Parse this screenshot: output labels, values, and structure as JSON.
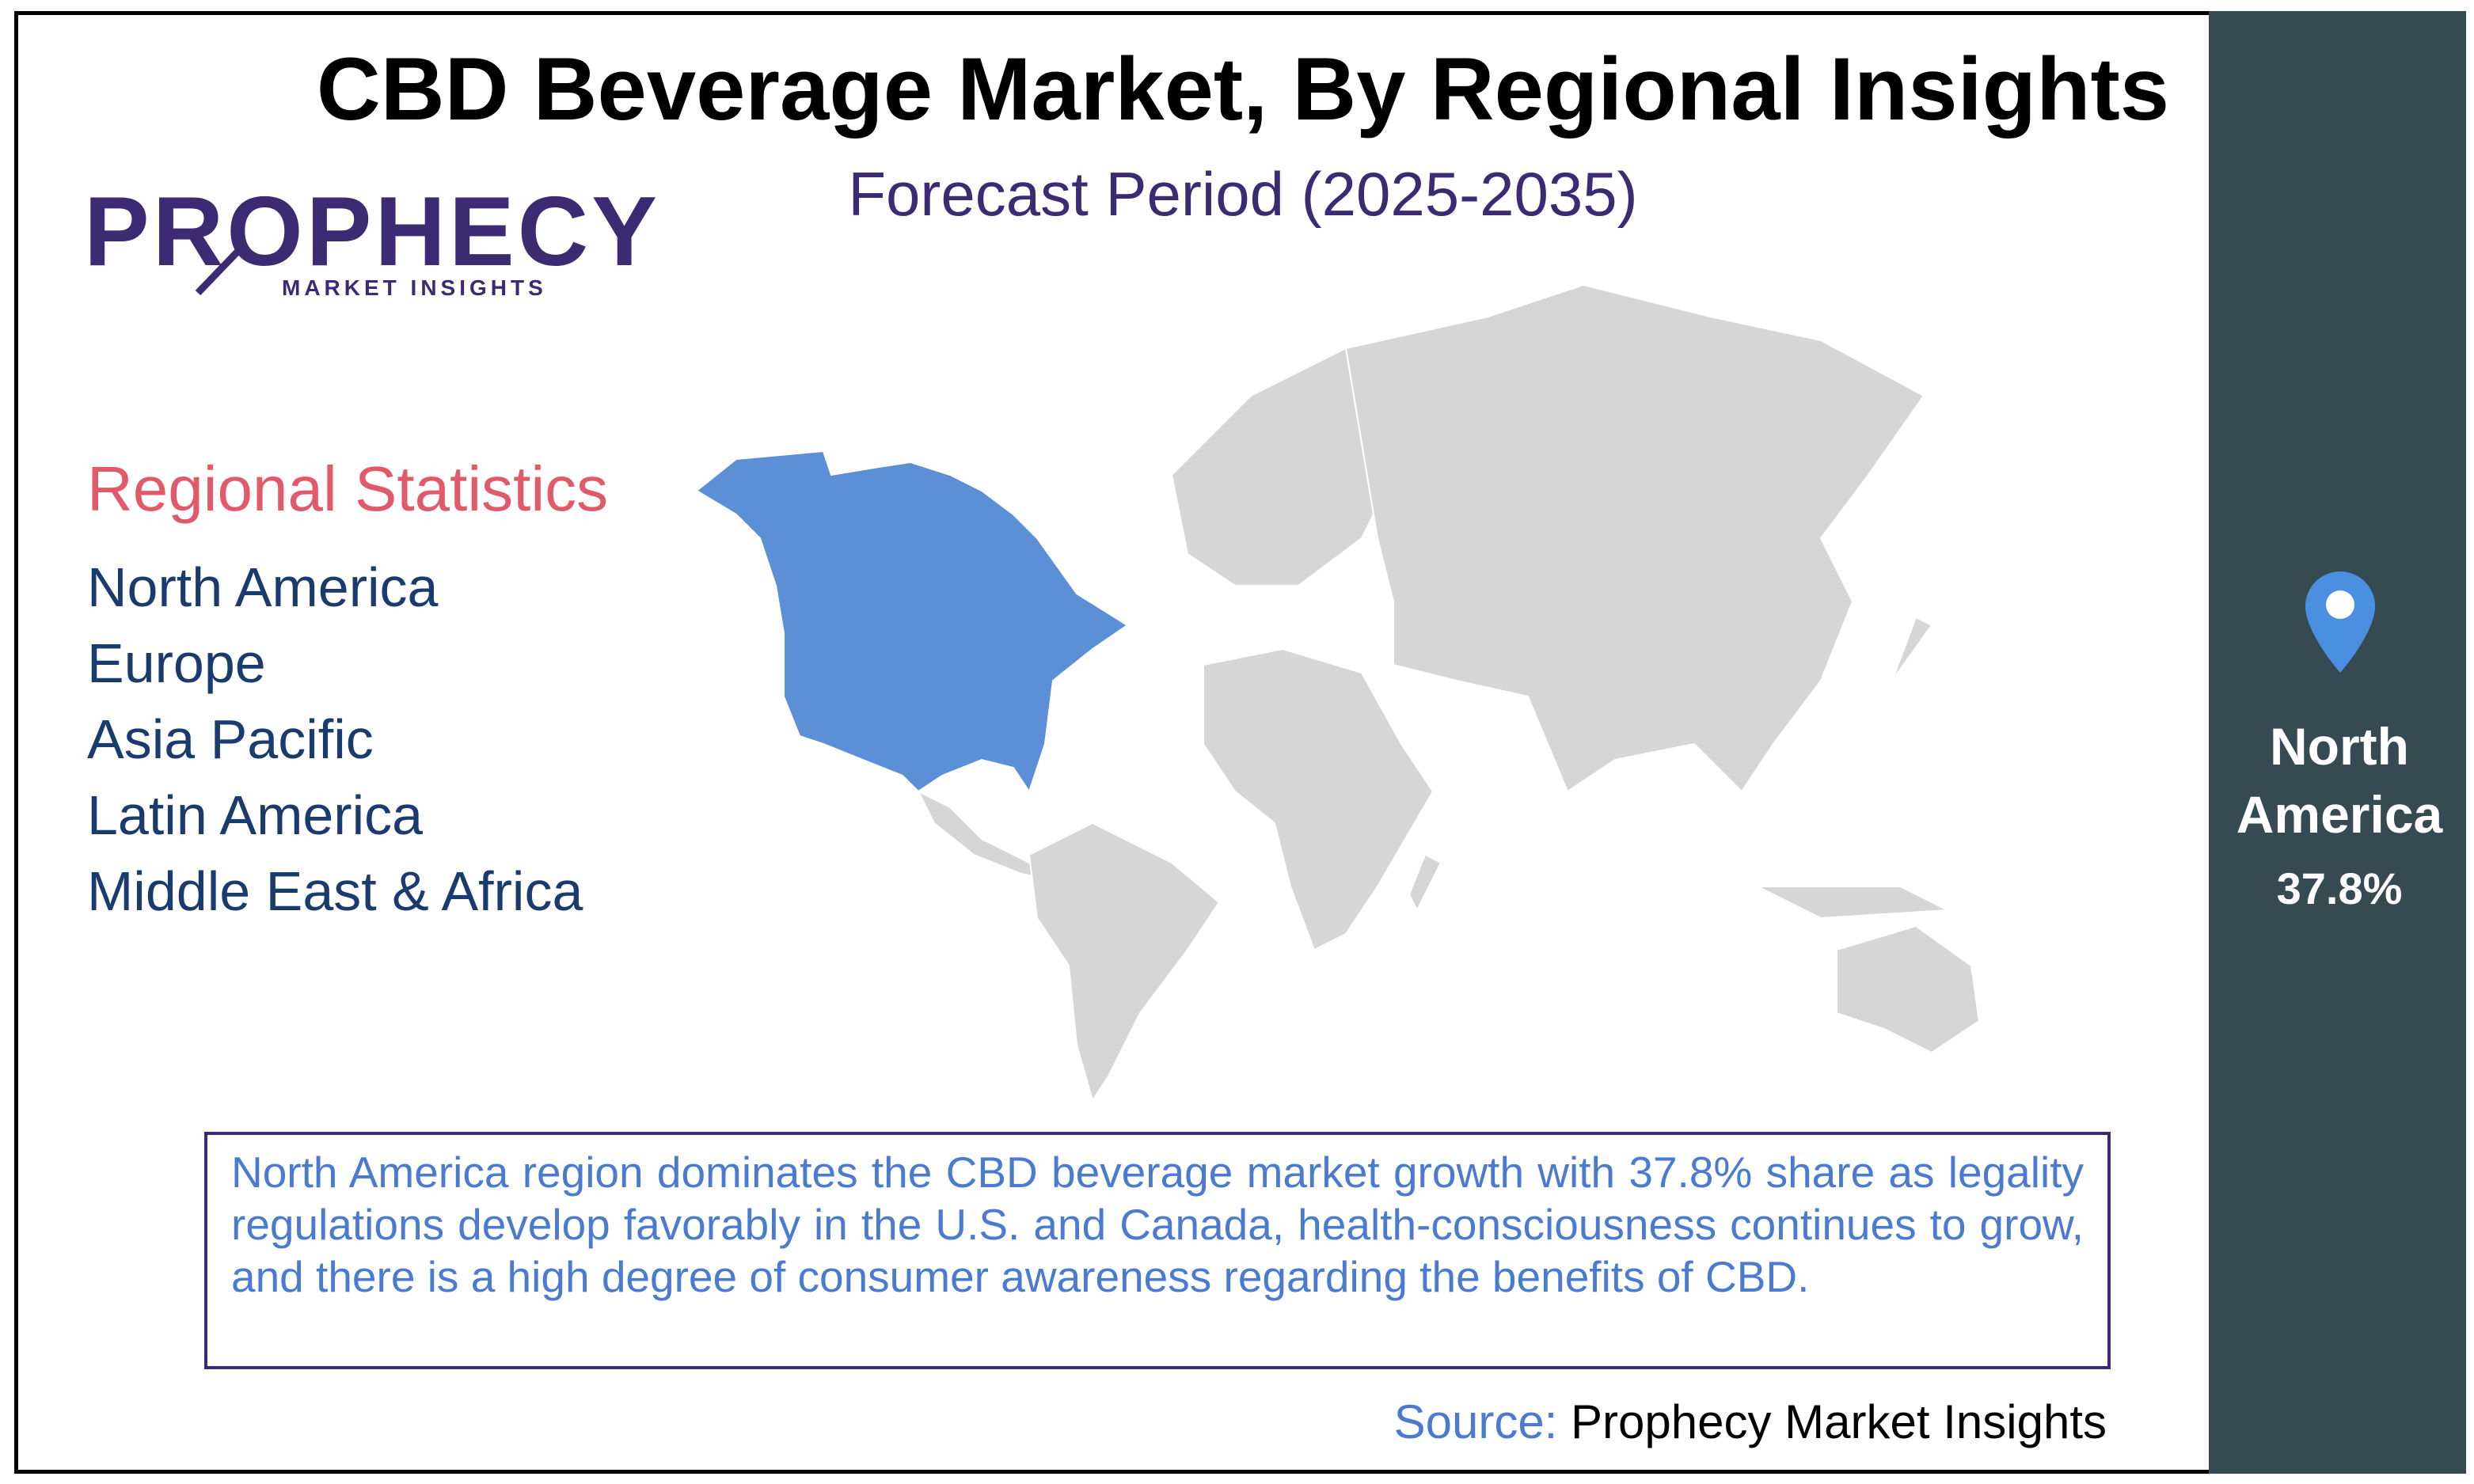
{
  "header": {
    "title": "CBD Beverage Market, By Regional Insights",
    "subtitle": "Forecast Period (2025-2035)"
  },
  "logo": {
    "name": "PROPHECY",
    "tagline": "MARKET INSIGHTS"
  },
  "regional_statistics": {
    "heading": "Regional Statistics",
    "regions": [
      "North America",
      "Europe",
      "Asia Pacific",
      "Latin America",
      "Middle East & Africa"
    ]
  },
  "highlight": {
    "region": "North America",
    "share": "37.8%"
  },
  "summary": "North America region dominates the CBD beverage market growth with 37.8% share as legality regulations develop favorably in the U.S. and Canada, health-consciousness continues to grow, and there is a high degree of consumer awareness regarding the benefits of CBD.",
  "source": {
    "label": "Source:",
    "text": "Prophecy Market Insights"
  }
}
